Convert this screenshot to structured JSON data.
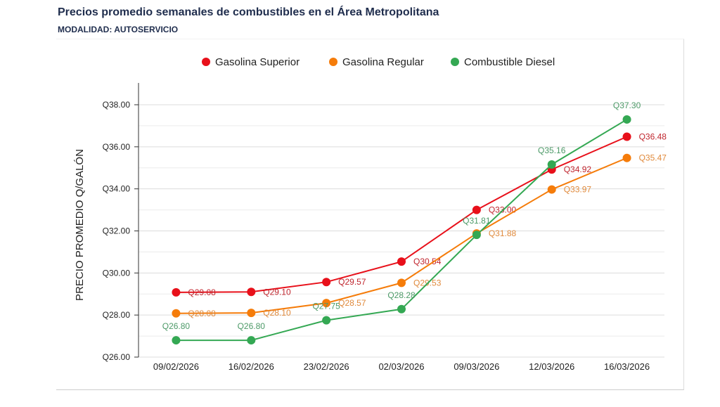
{
  "title": "Precios promedio semanales de combustibles en el Área Metropolitana",
  "subtitle": "MODALIDAD: AUTOSERVICIO",
  "chart_data": {
    "type": "line",
    "ylabel": "PRECIO PROMEDIO Q/GALÓN",
    "ylim": [
      26,
      38
    ],
    "yticks": [
      "Q26.00",
      "Q28.00",
      "Q30.00",
      "Q32.00",
      "Q34.00",
      "Q36.00",
      "Q38.00"
    ],
    "grid": true,
    "legend_position": "top",
    "categories": [
      "09/02/2026",
      "16/02/2026",
      "23/02/2026",
      "02/03/2026",
      "09/03/2026",
      "12/03/2026",
      "16/03/2026"
    ],
    "series": [
      {
        "name": "Gasolina Superior",
        "color": "#e8101a",
        "label_color": "#c0262e",
        "values": [
          29.08,
          29.1,
          29.57,
          30.54,
          33.0,
          34.92,
          36.48
        ],
        "labels": [
          "Q29.08",
          "Q29.10",
          "Q29.57",
          "Q30.54",
          "Q33.00",
          "Q34.92",
          "Q36.48"
        ]
      },
      {
        "name": "Gasolina Regular",
        "color": "#f57c0a",
        "label_color": "#e08a3c",
        "values": [
          28.08,
          28.1,
          28.57,
          29.53,
          31.88,
          33.97,
          35.47
        ],
        "labels": [
          "Q28.08",
          "Q28.10",
          "Q28.57",
          "Q29.53",
          "Q31.88",
          "Q33.97",
          "Q35.47"
        ]
      },
      {
        "name": "Combustible Diesel",
        "color": "#34a853",
        "label_color": "#4d9a68",
        "values": [
          26.8,
          26.8,
          27.75,
          28.28,
          31.81,
          35.16,
          37.3
        ],
        "labels": [
          "Q26.80",
          "Q26.80",
          "Q27.75",
          "Q28.28",
          "Q31.81",
          "Q35.16",
          "Q37.30"
        ]
      }
    ]
  }
}
